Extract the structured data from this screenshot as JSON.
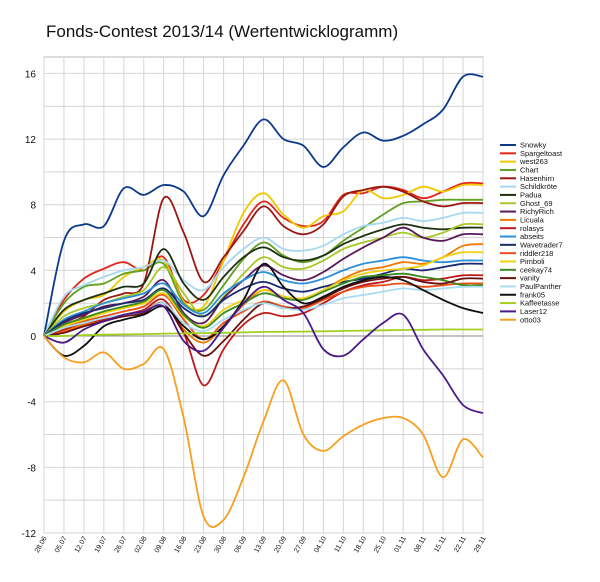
{
  "chart_data": {
    "type": "line",
    "title": "Fonds-Contest 2013/14 (Wertentwicklogramm)",
    "xlabel": "",
    "ylabel": "",
    "ylim": [
      -12,
      17
    ],
    "yticks": [
      -12,
      -8,
      -4,
      0,
      4,
      8,
      12,
      16
    ],
    "grid": true,
    "legend_position": "right",
    "categories": [
      "28.06",
      "05.07",
      "12.07",
      "19.07",
      "26.07",
      "02.08",
      "09.08",
      "16.08",
      "23.08",
      "30.08",
      "06.09",
      "13.09",
      "20.09",
      "27.09",
      "04.10",
      "11.10",
      "18.10",
      "25.10",
      "01.11",
      "08.11",
      "15.11",
      "22.11",
      "29.11"
    ],
    "series": [
      {
        "name": "Snowky",
        "color": "#0b3a8a",
        "values": [
          0,
          5.8,
          6.8,
          6.7,
          9.0,
          8.6,
          9.2,
          8.8,
          7.3,
          9.8,
          11.6,
          13.2,
          12.0,
          11.6,
          10.3,
          11.5,
          12.4,
          11.9,
          12.2,
          12.9,
          13.8,
          15.8,
          15.8
        ]
      },
      {
        "name": "Spargeltoast",
        "color": "#e0261a",
        "values": [
          0,
          2.2,
          3.5,
          4.1,
          4.5,
          4.0,
          4.8,
          2.2,
          2.5,
          4.6,
          6.8,
          8.2,
          7.2,
          6.7,
          7.0,
          8.6,
          8.7,
          9.1,
          8.9,
          8.4,
          8.8,
          9.3,
          9.3
        ]
      },
      {
        "name": "west263",
        "color": "#f2c800",
        "values": [
          0,
          1.5,
          2.2,
          2.5,
          3.6,
          4.2,
          4.6,
          2.1,
          1.8,
          4.6,
          7.5,
          8.7,
          7.4,
          6.6,
          7.3,
          7.6,
          8.9,
          8.4,
          8.6,
          9.1,
          8.8,
          9.2,
          9.2
        ]
      },
      {
        "name": "Chart",
        "color": "#60a020",
        "values": [
          0,
          2.0,
          3.0,
          3.2,
          3.8,
          4.0,
          4.4,
          2.0,
          1.6,
          3.1,
          4.7,
          5.7,
          4.9,
          4.5,
          4.9,
          5.8,
          6.6,
          7.4,
          8.1,
          8.2,
          8.3,
          8.3,
          8.3
        ]
      },
      {
        "name": "Hasenhirn",
        "color": "#9a1810",
        "values": [
          0,
          0.6,
          1.2,
          2.2,
          2.6,
          3.2,
          8.4,
          6.3,
          3.3,
          4.8,
          6.4,
          7.9,
          6.7,
          6.2,
          6.8,
          8.5,
          8.9,
          9.1,
          8.8,
          8.2,
          7.9,
          8.1,
          8.1
        ]
      },
      {
        "name": "Schildkröte",
        "color": "#a8d8f0",
        "values": [
          0,
          2.4,
          3.1,
          3.6,
          4.0,
          4.2,
          4.6,
          3.4,
          2.8,
          4.2,
          5.3,
          6.0,
          5.3,
          5.2,
          5.5,
          6.2,
          6.7,
          6.9,
          7.2,
          7.0,
          7.2,
          7.5,
          7.5
        ]
      },
      {
        "name": "Padua",
        "color": "#1e3010",
        "values": [
          0,
          1.6,
          2.2,
          2.6,
          3.0,
          3.2,
          5.3,
          3.2,
          2.2,
          3.6,
          4.8,
          5.4,
          4.8,
          4.6,
          4.9,
          5.6,
          6.1,
          6.5,
          6.8,
          6.6,
          6.5,
          6.6,
          6.6
        ]
      },
      {
        "name": "Ghost_69",
        "color": "#a8c828",
        "values": [
          0,
          1.2,
          1.7,
          2.0,
          2.4,
          2.8,
          4.2,
          2.6,
          1.2,
          2.4,
          3.8,
          4.8,
          4.2,
          4.1,
          4.6,
          5.3,
          5.7,
          6.0,
          6.3,
          6.0,
          6.3,
          6.8,
          6.8
        ]
      },
      {
        "name": "RichyRich",
        "color": "#5a1a5a",
        "values": [
          0,
          0.8,
          1.3,
          1.8,
          2.0,
          2.4,
          3.4,
          1.4,
          0.8,
          2.3,
          3.4,
          4.3,
          3.7,
          3.4,
          3.9,
          4.7,
          5.4,
          6.0,
          6.6,
          6.0,
          5.8,
          6.2,
          6.2
        ]
      },
      {
        "name": "Licuala",
        "color": "#ef7a00",
        "values": [
          0,
          0.3,
          0.7,
          1.0,
          1.2,
          1.5,
          2.0,
          0.4,
          -0.4,
          0.6,
          1.9,
          2.8,
          2.4,
          2.3,
          2.8,
          3.5,
          4.0,
          4.2,
          4.5,
          4.4,
          4.8,
          5.5,
          5.6
        ]
      },
      {
        "name": "rolasys",
        "color": "#c01818",
        "values": [
          0,
          0.4,
          0.8,
          1.0,
          1.3,
          1.6,
          2.2,
          0.2,
          -3.0,
          -0.8,
          0.7,
          1.4,
          1.2,
          1.4,
          2.0,
          2.7,
          3.1,
          3.3,
          3.6,
          3.4,
          3.5,
          3.7,
          3.7
        ]
      },
      {
        "name": "abseits",
        "color": "#2a90d8",
        "values": [
          0,
          1.0,
          1.5,
          2.0,
          2.3,
          2.6,
          3.2,
          1.9,
          1.4,
          2.6,
          3.4,
          3.9,
          3.4,
          3.2,
          3.5,
          4.0,
          4.4,
          4.6,
          4.8,
          4.6,
          4.5,
          4.6,
          4.6
        ]
      },
      {
        "name": "Wavetrader7",
        "color": "#1a2a70",
        "values": [
          0,
          0.9,
          1.4,
          1.7,
          2.0,
          2.2,
          2.9,
          1.7,
          1.2,
          2.2,
          2.9,
          3.3,
          2.9,
          2.7,
          3.0,
          3.3,
          3.5,
          3.8,
          4.1,
          4.0,
          4.2,
          4.4,
          4.4
        ]
      },
      {
        "name": "riddler218",
        "color": "#e8501a",
        "values": [
          0,
          0.5,
          0.9,
          1.2,
          1.5,
          1.8,
          2.5,
          1.0,
          -0.2,
          0.8,
          1.5,
          2.1,
          1.8,
          1.7,
          2.2,
          2.7,
          3.0,
          3.1,
          3.2,
          3.0,
          3.1,
          3.2,
          3.2
        ]
      },
      {
        "name": "Pimboli",
        "color": "#f0d010",
        "values": [
          0,
          0.6,
          1.0,
          1.4,
          1.7,
          2.0,
          2.6,
          1.2,
          0.6,
          1.6,
          2.2,
          2.8,
          2.4,
          2.3,
          2.8,
          3.4,
          3.8,
          4.0,
          4.1,
          4.3,
          4.8,
          5.1,
          5.1
        ]
      },
      {
        "name": "ceekay74",
        "color": "#3a8a20",
        "values": [
          0,
          0.7,
          1.1,
          1.5,
          1.8,
          2.1,
          2.8,
          1.3,
          0.5,
          1.4,
          2.0,
          2.6,
          2.3,
          2.2,
          2.7,
          3.2,
          3.6,
          3.7,
          3.8,
          3.6,
          3.4,
          3.1,
          3.1
        ]
      },
      {
        "name": "vanity",
        "color": "#6a1010",
        "values": [
          0,
          0.2,
          0.6,
          0.9,
          1.2,
          1.4,
          2.0,
          0.2,
          -1.2,
          -0.3,
          1.0,
          2.0,
          1.7,
          1.8,
          2.3,
          2.9,
          3.3,
          3.5,
          3.6,
          3.3,
          3.2,
          3.5,
          3.5
        ]
      },
      {
        "name": "PaulPanther",
        "color": "#a8dcf0",
        "values": [
          0,
          0.5,
          0.8,
          1.1,
          1.3,
          1.5,
          2.0,
          0.8,
          0.3,
          1.0,
          1.6,
          2.0,
          1.7,
          1.6,
          1.9,
          2.3,
          2.5,
          2.7,
          2.9,
          2.8,
          2.9,
          3.0,
          3.0
        ]
      },
      {
        "name": "frank05",
        "color": "#101010",
        "values": [
          0,
          -1.2,
          -0.6,
          0.6,
          1.0,
          1.3,
          1.8,
          0.6,
          -0.2,
          0.6,
          2.2,
          4.4,
          3.0,
          2.0,
          2.4,
          3.0,
          3.4,
          3.6,
          3.4,
          2.8,
          2.2,
          1.7,
          1.4
        ]
      },
      {
        "name": "Kaffeetasse",
        "color": "#a0d020",
        "values": [
          0,
          0.0,
          0.05,
          0.08,
          0.1,
          0.12,
          0.15,
          0.16,
          0.18,
          0.2,
          0.22,
          0.25,
          0.26,
          0.27,
          0.29,
          0.31,
          0.33,
          0.35,
          0.37,
          0.38,
          0.4,
          0.4,
          0.4
        ]
      },
      {
        "name": "Laser12",
        "color": "#4a1a8a",
        "values": [
          0,
          -0.4,
          0.4,
          0.9,
          1.3,
          1.5,
          1.8,
          -0.3,
          -0.9,
          0.5,
          2.0,
          3.0,
          2.2,
          1.4,
          -0.8,
          -1.2,
          -0.2,
          0.8,
          1.3,
          -0.8,
          -2.4,
          -4.2,
          -4.7
        ]
      },
      {
        "name": "otto03",
        "color": "#f5a020",
        "values": [
          0,
          -1.3,
          -1.6,
          -1.0,
          -2.0,
          -1.7,
          -0.8,
          -5.0,
          -11.0,
          -11.2,
          -8.6,
          -5.2,
          -2.7,
          -6.0,
          -7.0,
          -6.1,
          -5.4,
          -5.0,
          -5.0,
          -6.0,
          -8.6,
          -6.3,
          -7.4
        ]
      }
    ]
  }
}
